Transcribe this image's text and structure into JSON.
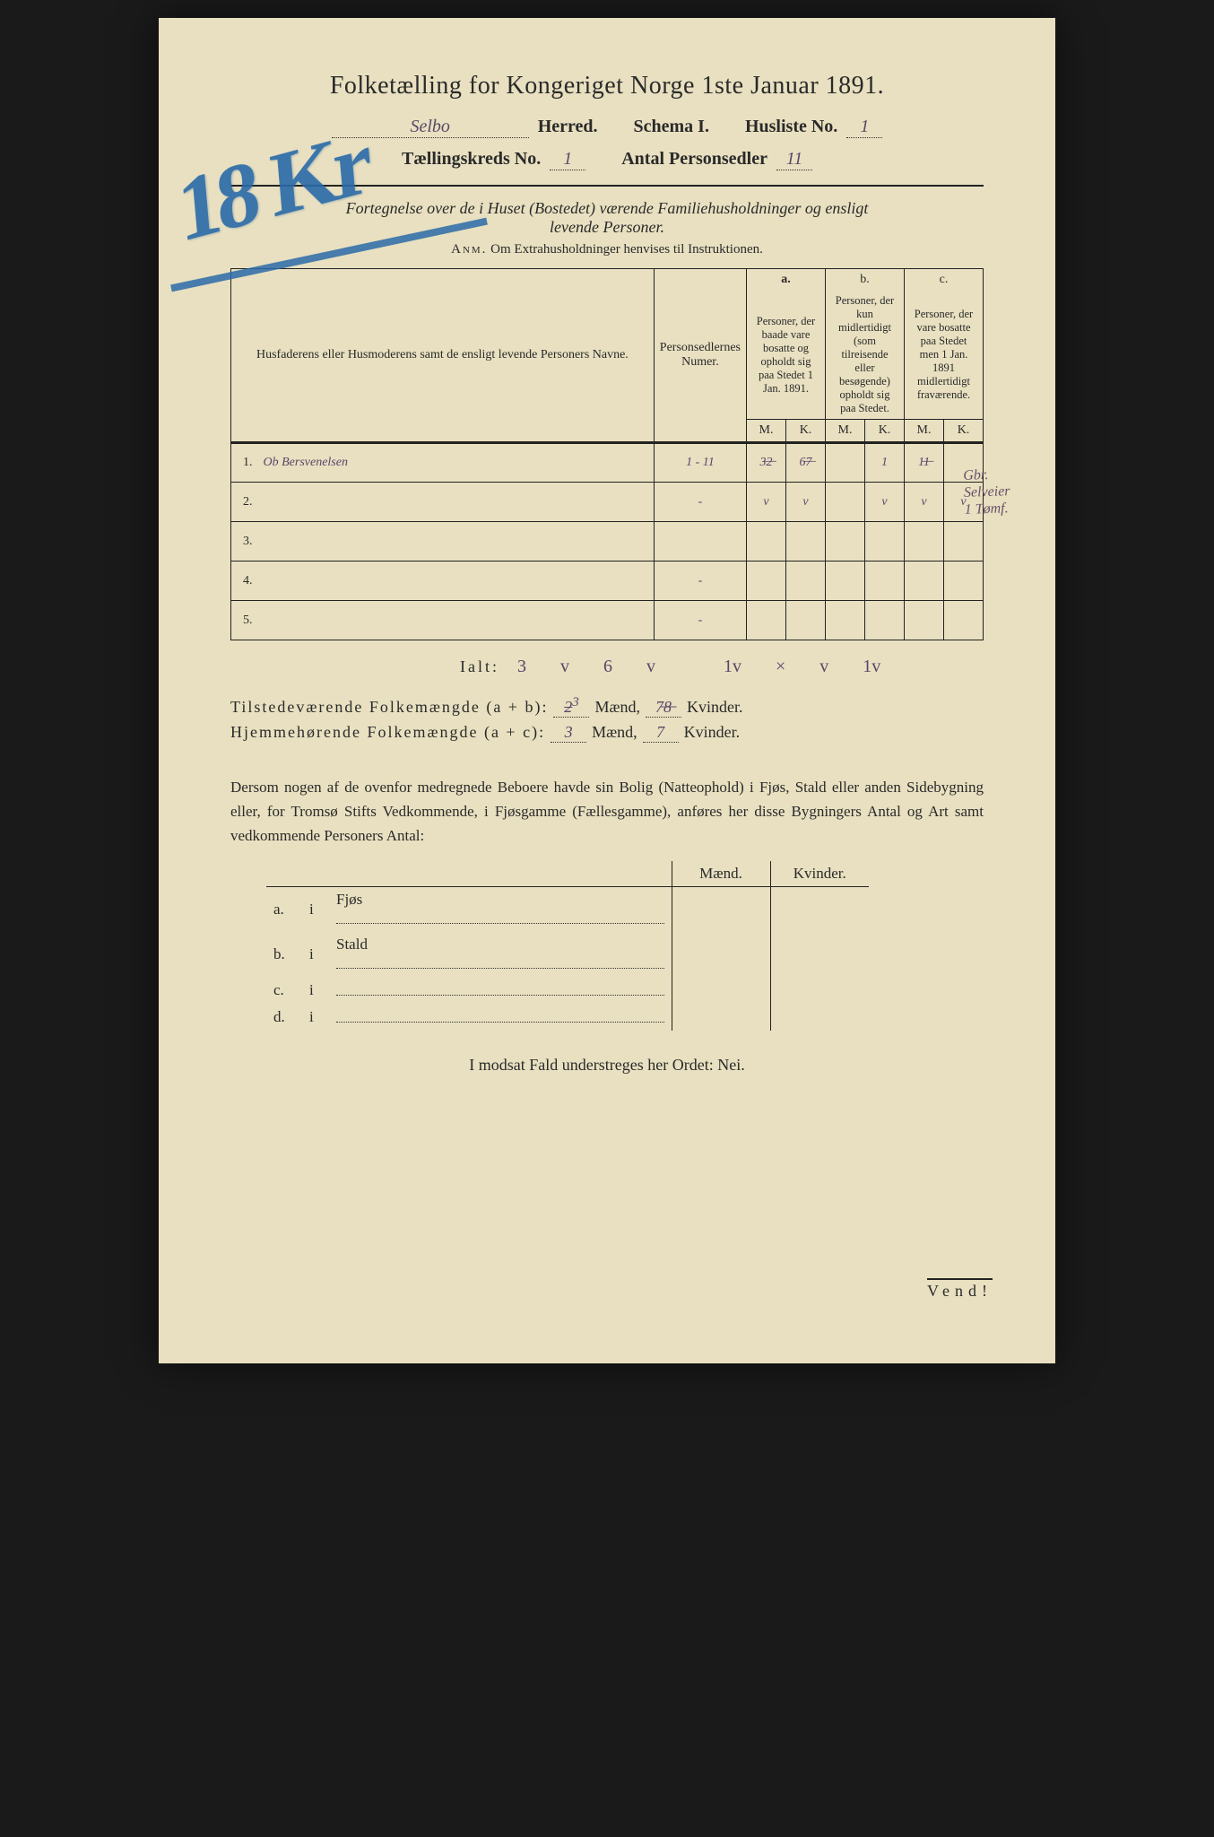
{
  "title": "Folketælling for Kongeriget Norge 1ste Januar 1891.",
  "header": {
    "herred_value": "Selbo",
    "herred_label": "Herred.",
    "schema_label": "Schema I.",
    "husliste_label": "Husliste No.",
    "husliste_value": "1",
    "kreds_label": "Tællingskreds No.",
    "kreds_value": "1",
    "personsedler_label": "Antal Personsedler",
    "personsedler_value": "11"
  },
  "subheading_1": "Fortegnelse over de i Huset (Bostedet) værende Familiehusholdninger og ensligt",
  "subheading_2": "levende Personer.",
  "anm_lead": "Anm.",
  "anm_text": "Om Extrahusholdninger henvises til Instruktionen.",
  "scribble": "18 Kr",
  "table": {
    "col_names": "Husfaderens eller Husmoderens samt de ensligt levende Personers Navne.",
    "col_numer": "Personsedlernes Numer.",
    "col_a_head": "a.",
    "col_a": "Personer, der baade vare bosatte og opholdt sig paa Stedet 1 Jan. 1891.",
    "col_b_head": "b.",
    "col_b": "Personer, der kun midlertidigt (som tilreisende eller besøgende) opholdt sig paa Stedet.",
    "col_c_head": "c.",
    "col_c": "Personer, der vare bosatte paa Stedet men 1 Jan. 1891 midlertidigt fraværende.",
    "M": "M.",
    "K": "K.",
    "rows": [
      {
        "n": "1.",
        "name": "Ob Bersvenelsen",
        "num": "1 - 11",
        "aM": "3̶2̶",
        "aK": "6̶7̶",
        "bM": "",
        "bK": "1",
        "cM": "1̶1̶",
        "cK": ""
      },
      {
        "n": "2.",
        "name": "",
        "num": "-",
        "aM": "v",
        "aK": "v",
        "bM": "",
        "bK": "v",
        "cM": "v",
        "cK": "v"
      },
      {
        "n": "3.",
        "name": "",
        "num": "",
        "aM": "",
        "aK": "",
        "bM": "",
        "bK": "",
        "cM": "",
        "cK": ""
      },
      {
        "n": "4.",
        "name": "",
        "num": "-",
        "aM": "",
        "aK": "",
        "bM": "",
        "bK": "",
        "cM": "",
        "cK": ""
      },
      {
        "n": "5.",
        "name": "",
        "num": "-",
        "aM": "",
        "aK": "",
        "bM": "",
        "bK": "",
        "cM": "",
        "cK": ""
      }
    ],
    "side_note_1": "Gbr.",
    "side_note_2": "Selveier",
    "side_note_3": "1 Tømf."
  },
  "ialt": {
    "label": "Ialt:",
    "vals": [
      "3",
      "v",
      "6",
      "v",
      "",
      "1v",
      "×",
      "v",
      "1v"
    ]
  },
  "totals": {
    "row1_label": "Tilstedeværende Folkemængde (a + b):",
    "row1_m_old": "2",
    "row1_m_new": "3",
    "row1_k_old": "7",
    "row1_k_new": "7̶8̶",
    "row2_label": "Hjemmehørende Folkemængde (a + c):",
    "row2_m": "3",
    "row2_k": "7",
    "maend": "Mænd,",
    "kvinder": "Kvinder."
  },
  "para": "Dersom nogen af de ovenfor medregnede Beboere havde sin Bolig (Natteophold) i Fjøs, Stald eller anden Sidebygning eller, for Tromsø Stifts Vedkommende, i Fjøsgamme (Fællesgamme), anføres her disse Bygningers Antal og Art samt vedkommende Personers Antal:",
  "bldg": {
    "maend": "Mænd.",
    "kvinder": "Kvinder.",
    "rows": [
      {
        "k": "a.",
        "i": "i",
        "label": "Fjøs"
      },
      {
        "k": "b.",
        "i": "i",
        "label": "Stald"
      },
      {
        "k": "c.",
        "i": "i",
        "label": ""
      },
      {
        "k": "d.",
        "i": "i",
        "label": ""
      }
    ]
  },
  "nei_line": "I modsat Fald understreges her Ordet: Nei.",
  "vend": "Vend!"
}
